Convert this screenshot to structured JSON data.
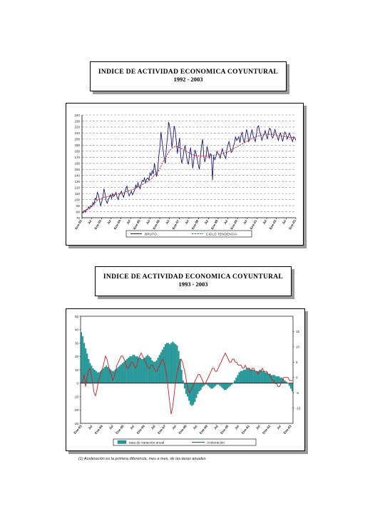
{
  "chart1": {
    "title": "INDICE DE ACTIVIDAD ECONOMICA COYUNTURAL",
    "subtitle": "1992 - 2003",
    "chart_data": {
      "type": "line",
      "ylim": [
        70,
        240
      ],
      "yticks": [
        70,
        80,
        90,
        100,
        110,
        120,
        130,
        140,
        150,
        160,
        170,
        180,
        190,
        200,
        210,
        220,
        230,
        240
      ],
      "xtick_labels": [
        "Ene-92",
        "Jul",
        "Ene-93",
        "Jul",
        "Ene-94",
        "Jul",
        "Ene-95",
        "Jul",
        "Ene-96",
        "Jul",
        "Ene-97",
        "Jul",
        "Ene-98",
        "Jul",
        "Ene-99",
        "Jul",
        "Ene-00",
        "Jul",
        "Ene-01",
        "Jul",
        "Ene-02",
        "Jul",
        "Ene-03"
      ],
      "grid": true,
      "legend_position": "bottom",
      "series": [
        {
          "name": "BRUTO",
          "color": "#1a1a7a",
          "values": [
            80,
            78,
            82,
            79,
            84,
            83,
            88,
            85,
            90,
            88,
            95,
            92,
            102,
            100,
            112,
            108,
            98,
            90,
            96,
            104,
            118,
            110,
            98,
            94,
            100,
            104,
            108,
            102,
            110,
            105,
            108,
            112,
            104,
            100,
            108,
            110,
            114,
            108,
            104,
            112,
            118,
            122,
            112,
            106,
            110,
            114,
            108,
            112,
            116,
            124,
            120,
            128,
            122,
            118,
            126,
            132,
            130,
            136,
            128,
            134,
            136,
            132,
            144,
            140,
            148,
            142,
            160,
            150,
            138,
            148,
            172,
            186,
            212,
            196,
            182,
            168,
            160,
            188,
            204,
            228,
            220,
            208,
            186,
            200,
            222,
            214,
            196,
            176,
            190,
            202,
            172,
            160,
            168,
            182,
            190,
            176,
            164,
            158,
            174,
            186,
            170,
            152,
            166,
            182,
            176,
            168,
            158,
            150,
            172,
            190,
            200,
            172,
            162,
            170,
            188,
            180,
            168,
            176,
            174,
            132,
            172,
            166,
            170,
            180,
            176,
            174,
            168,
            178,
            184,
            176,
            172,
            168,
            182,
            190,
            196,
            188,
            178,
            180,
            188,
            194,
            204,
            198,
            200,
            204,
            194,
            206,
            212,
            200,
            194,
            204,
            216,
            210,
            196,
            200,
            208,
            216,
            206,
            200,
            196,
            208,
            220,
            222,
            212,
            206,
            198,
            204,
            208,
            214,
            206,
            200,
            212,
            218,
            216,
            204,
            202,
            210,
            216,
            208,
            204,
            198,
            206,
            210,
            202,
            196,
            206,
            212,
            208,
            200,
            204,
            210,
            206,
            200,
            196,
            204,
            202,
            198
          ]
        },
        {
          "name": "CICLO TENDENCIA",
          "color": "#cc2222",
          "values": [
            79,
            80,
            81,
            82,
            83,
            84,
            85,
            86,
            88,
            89,
            91,
            93,
            95,
            97,
            99,
            100,
            101,
            101,
            102,
            103,
            104,
            104,
            104,
            105,
            105,
            106,
            106,
            107,
            107,
            108,
            108,
            108,
            109,
            109,
            110,
            110,
            110,
            111,
            111,
            112,
            113,
            114,
            114,
            115,
            115,
            116,
            116,
            117,
            118,
            119,
            120,
            121,
            122,
            123,
            124,
            125,
            126,
            127,
            128,
            129,
            130,
            131,
            133,
            134,
            136,
            138,
            140,
            142,
            144,
            146,
            148,
            151,
            155,
            159,
            163,
            166,
            169,
            172,
            175,
            178,
            181,
            183,
            185,
            186,
            187,
            188,
            188,
            188,
            187,
            186,
            185,
            184,
            183,
            182,
            181,
            180,
            179,
            178,
            177,
            176,
            175,
            174,
            174,
            173,
            173,
            173,
            172,
            172,
            172,
            172,
            172,
            172,
            172,
            172,
            172,
            172,
            172,
            173,
            173,
            173,
            173,
            174,
            174,
            174,
            175,
            175,
            175,
            176,
            176,
            177,
            177,
            178,
            178,
            179,
            180,
            181,
            182,
            183,
            184,
            185,
            186,
            187,
            188,
            189,
            190,
            191,
            192,
            193,
            194,
            195,
            196,
            197,
            198,
            199,
            200,
            201,
            202,
            203,
            203,
            204,
            205,
            205,
            206,
            206,
            207,
            207,
            207,
            208,
            208,
            208,
            208,
            208,
            208,
            208,
            207,
            207,
            207,
            207,
            206,
            206,
            206,
            206,
            205,
            205,
            205,
            204,
            204,
            204,
            204,
            203,
            203,
            203,
            203,
            203,
            202,
            202
          ]
        }
      ]
    }
  },
  "chart2": {
    "title": "INDICE DE ACTIVIDAD ECONOMICA COYUNTURAL",
    "subtitle": "1993 - 2003",
    "chart_data": {
      "type": "bar",
      "ylim": [
        -30,
        50
      ],
      "yticks": [
        -30,
        -20,
        -10,
        0,
        10,
        20,
        30,
        40,
        50
      ],
      "y2lim": [
        -15,
        20
      ],
      "y2ticks": [
        -10,
        -5,
        0,
        5,
        10,
        15
      ],
      "xtick_labels": [
        "Ene-93",
        "Jul",
        "Ene-94",
        "Jul",
        "Ene-95",
        "Jul",
        "Ene-96",
        "Jul",
        "Ene-97",
        "Jul",
        "Ene-98",
        "Jul",
        "Ene-99",
        "Jul",
        "Ene-00",
        "Jul",
        "Ene-01",
        "Jul",
        "Ene-02",
        "Jul",
        "Ene-03"
      ],
      "grid": false,
      "legend_position": "bottom",
      "series": [
        {
          "name": "tasa de variación anual",
          "type": "bar",
          "color": "#1a9a9a",
          "values": [
            38,
            35,
            30,
            26,
            22,
            18,
            15,
            13,
            11,
            10,
            9,
            8,
            8,
            9,
            10,
            11,
            12,
            13,
            12,
            11,
            10,
            9,
            9,
            10,
            11,
            12,
            13,
            14,
            15,
            16,
            17,
            18,
            19,
            20,
            20,
            21,
            21,
            20,
            20,
            19,
            19,
            18,
            18,
            19,
            20,
            21,
            20,
            19,
            17,
            16,
            16,
            17,
            19,
            21,
            23,
            25,
            27,
            29,
            30,
            30,
            29,
            30,
            31,
            30,
            29,
            28,
            24,
            18,
            10,
            2,
            -4,
            -8,
            -10,
            -13,
            -16,
            -17,
            -16,
            -14,
            -11,
            -8,
            -6,
            -5,
            -3,
            -2,
            -1,
            -1,
            -2,
            -3,
            -4,
            -4,
            -3,
            -2,
            -1,
            -1,
            -2,
            -3,
            -4,
            -5,
            -5,
            -4,
            -3,
            -2,
            -1,
            0,
            2,
            4,
            6,
            8,
            9,
            9,
            10,
            10,
            11,
            11,
            11,
            10,
            10,
            10,
            9,
            9,
            9,
            10,
            10,
            9,
            9,
            8,
            8,
            7,
            7,
            6,
            6,
            6,
            5,
            5,
            5,
            4,
            4,
            3,
            2,
            1,
            0,
            -2,
            -4,
            -6
          ]
        },
        {
          "name": "Aceleración",
          "type": "line",
          "color": "#cc2222",
          "values": [
            -2,
            -1,
            1,
            -3,
            0,
            2,
            3,
            1,
            -2,
            -5,
            -6,
            -4,
            -1,
            0,
            2,
            3,
            5,
            7,
            6,
            4,
            2,
            1,
            -1,
            0,
            2,
            4,
            5,
            6,
            7,
            7,
            6,
            5,
            3,
            3,
            4,
            5,
            5,
            4,
            3,
            4,
            6,
            7,
            8,
            7,
            6,
            5,
            4,
            3,
            3,
            4,
            4,
            3,
            2,
            2,
            3,
            4,
            5,
            6,
            5,
            3,
            0,
            -4,
            -8,
            -12,
            -10,
            -6,
            -2,
            1,
            3,
            5,
            6,
            5,
            3,
            1,
            -2,
            -4,
            -5,
            -4,
            -3,
            -2,
            -1,
            0,
            1,
            1,
            0,
            -1,
            -2,
            -2,
            -1,
            0,
            1,
            2,
            3,
            3,
            2,
            2,
            3,
            4,
            5,
            6,
            7,
            8,
            7,
            6,
            5,
            5,
            6,
            6,
            5,
            5,
            4,
            4,
            4,
            3,
            3,
            4,
            3,
            3,
            3,
            2,
            3,
            3,
            2,
            2,
            1,
            2,
            2,
            3,
            2,
            2,
            2,
            1,
            1,
            0,
            -1,
            -1,
            -2,
            -2,
            -3,
            -3,
            -2,
            -1,
            0,
            0,
            0,
            0,
            -1,
            -1,
            -1
          ]
        }
      ]
    }
  },
  "footnote": "(1) Aceleración es la primera diferencia, mes a mes, de las tasas anuales"
}
